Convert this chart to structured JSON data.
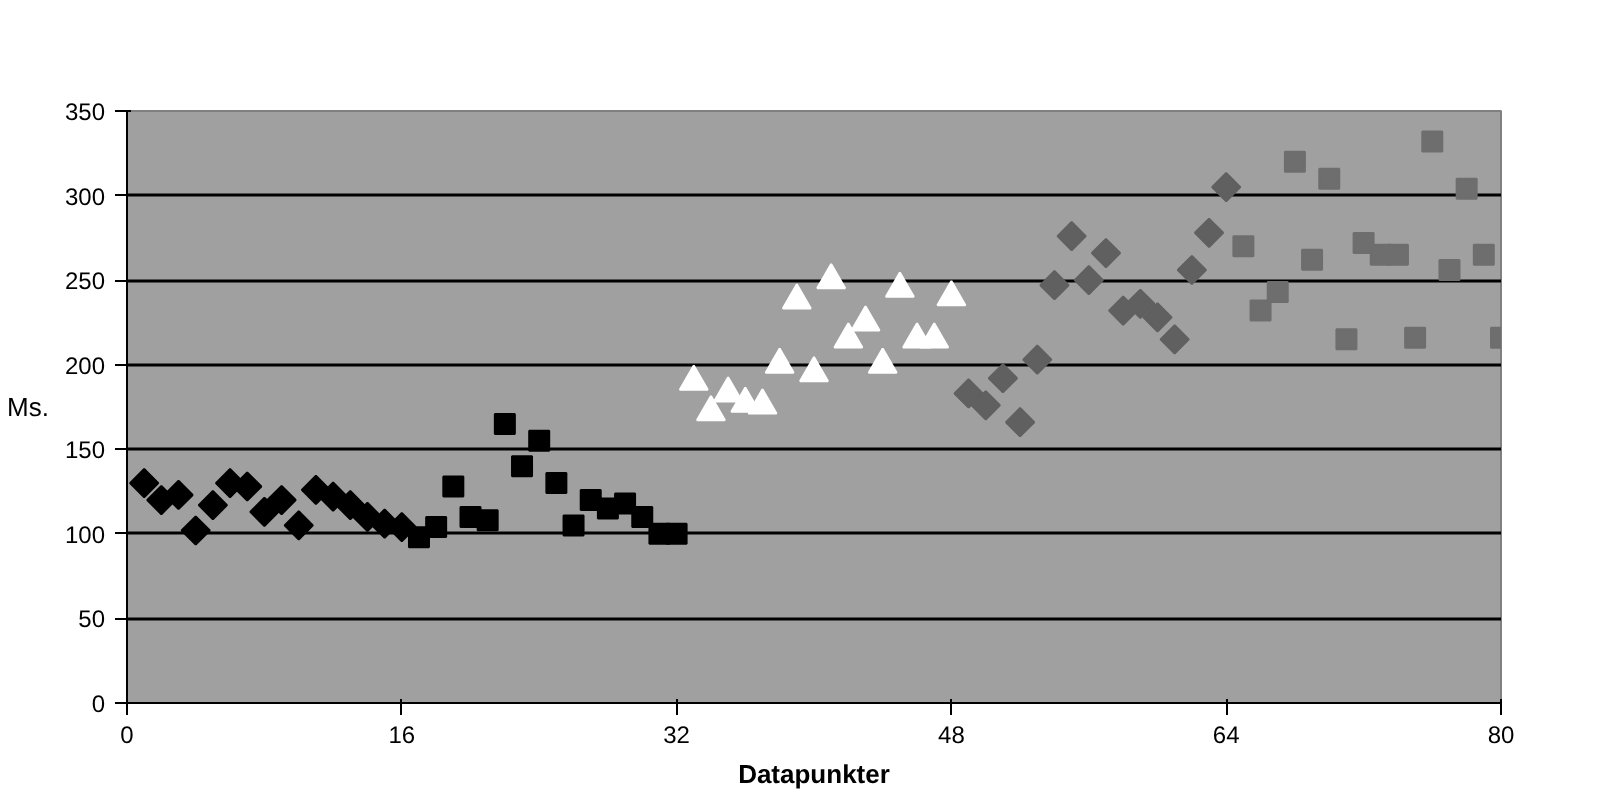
{
  "chart_data": {
    "type": "scatter",
    "xlabel": "Datapunkter",
    "ylabel": "Ms.",
    "xlim": [
      0,
      80
    ],
    "xticks": [
      0,
      16,
      32,
      48,
      64,
      80
    ],
    "ylim": [
      0,
      350
    ],
    "yticks": [
      0,
      50,
      100,
      150,
      200,
      250,
      300,
      350
    ],
    "grid": "y",
    "series": [
      {
        "color": "#000000",
        "marker": "diamond",
        "x": [
          1,
          2,
          3,
          4,
          5,
          6,
          7,
          8,
          9,
          10,
          11,
          12,
          13,
          14,
          15,
          16
        ],
        "values": [
          130,
          120,
          123,
          102,
          117,
          130,
          128,
          113,
          120,
          105,
          126,
          122,
          117,
          110,
          106,
          104
        ]
      },
      {
        "color": "#000000",
        "marker": "square",
        "x": [
          17,
          18,
          19,
          20,
          21,
          22,
          23,
          24,
          25,
          26,
          27,
          28,
          29,
          30,
          31,
          32
        ],
        "values": [
          98,
          104,
          128,
          110,
          108,
          165,
          140,
          155,
          130,
          105,
          120,
          115,
          118,
          110,
          100,
          100
        ]
      },
      {
        "color": "#ffffff",
        "marker": "triangle",
        "x": [
          33,
          34,
          35,
          36,
          37,
          38,
          39,
          40,
          41,
          42,
          43,
          44,
          45,
          46,
          47,
          48
        ],
        "values": [
          190,
          172,
          183,
          177,
          176,
          200,
          238,
          195,
          250,
          215,
          225,
          200,
          245,
          215,
          215,
          240
        ]
      },
      {
        "color": "#606060",
        "marker": "diamond",
        "x": [
          49,
          50,
          51,
          52,
          53,
          54,
          55,
          56,
          57,
          58,
          59,
          60,
          61,
          62,
          63,
          64
        ],
        "values": [
          183,
          176,
          192,
          166,
          203,
          247,
          276,
          250,
          266,
          232,
          236,
          228,
          215,
          256,
          278,
          305
        ]
      },
      {
        "color": "#6e6e6e",
        "marker": "square",
        "x": [
          65,
          66,
          67,
          68,
          69,
          70,
          71,
          72,
          73,
          74,
          75,
          76,
          77,
          78,
          79,
          80
        ],
        "values": [
          270,
          232,
          243,
          320,
          262,
          310,
          215,
          272,
          265,
          265,
          216,
          332,
          256,
          304,
          265,
          216
        ]
      }
    ]
  }
}
